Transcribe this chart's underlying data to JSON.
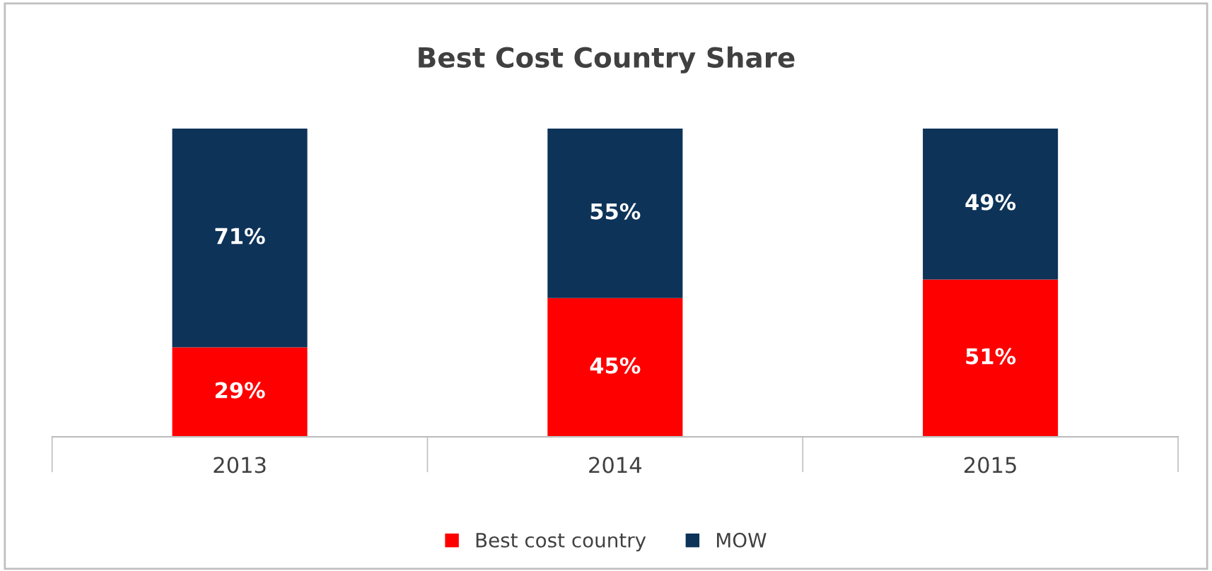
{
  "chart_data": {
    "type": "bar",
    "title": "Best Cost Country Share",
    "categories": [
      "2013",
      "2014",
      "2015"
    ],
    "stacked": true,
    "legend": "bottom",
    "grid": false,
    "series": [
      {
        "name": "Best cost country",
        "color": "#ff0000",
        "values": [
          29,
          45,
          51
        ],
        "value_labels": [
          "29%",
          "45%",
          "51%"
        ]
      },
      {
        "name": "MOW",
        "color": "#0d3358",
        "values": [
          71,
          55,
          49
        ],
        "value_labels": [
          "71%",
          "55%",
          "49%"
        ]
      }
    ]
  }
}
